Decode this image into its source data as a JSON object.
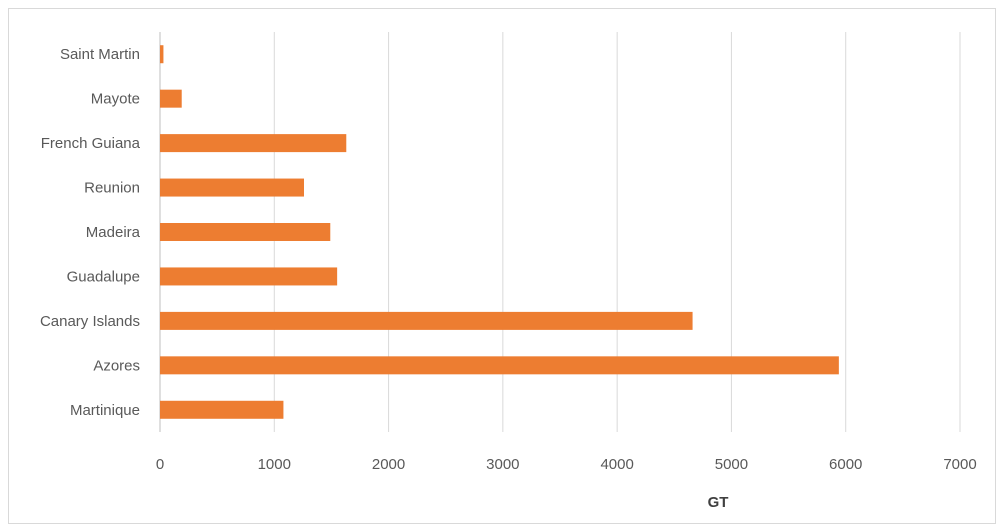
{
  "chart_data": {
    "type": "bar",
    "orientation": "horizontal",
    "title": "",
    "xlabel": "GT",
    "ylabel": "",
    "categories": [
      "Saint Martin",
      "Mayote",
      "French Guiana",
      "Reunion",
      "Madeira",
      "Guadalupe",
      "Canary Islands",
      "Azores",
      "Martinique"
    ],
    "values": [
      30,
      190,
      1630,
      1260,
      1490,
      1550,
      4660,
      5940,
      1080
    ],
    "xlim": [
      0,
      7000
    ],
    "x_ticks": [
      "0",
      "1000",
      "2000",
      "3000",
      "4000",
      "5000",
      "6000",
      "7000"
    ],
    "grid": "vertical",
    "legend": "none",
    "bar_color": "#ED7D31"
  }
}
